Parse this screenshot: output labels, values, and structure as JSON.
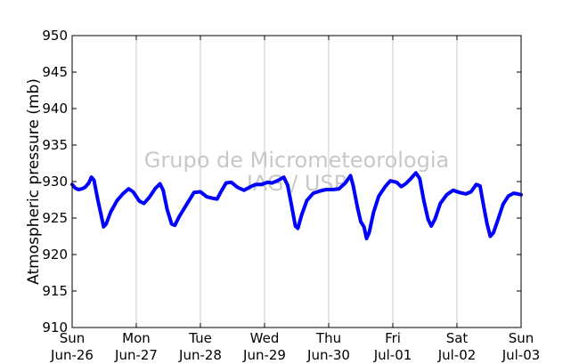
{
  "chart_data": {
    "type": "line",
    "ylabel": "Atmospheric pressure (mb)",
    "ylim": [
      910,
      950
    ],
    "xlim": [
      0,
      7
    ],
    "yticks": [
      910,
      915,
      920,
      925,
      930,
      935,
      940,
      945,
      950
    ],
    "xticks": [
      {
        "day": "Sun",
        "date": "Jun-26"
      },
      {
        "day": "Mon",
        "date": "Jun-27"
      },
      {
        "day": "Tue",
        "date": "Jun-28"
      },
      {
        "day": "Wed",
        "date": "Jun-29"
      },
      {
        "day": "Thu",
        "date": "Jun-30"
      },
      {
        "day": "Fri",
        "date": "Jul-01"
      },
      {
        "day": "Sat",
        "date": "Jul-02"
      },
      {
        "day": "Sun",
        "date": "Jul-03"
      }
    ],
    "x_unit": "days since Jun-26 00:00",
    "grid": "vertical",
    "series_color": "#0000ff",
    "watermark": [
      "Grupo de Micrometeorologia",
      "IAG / USP"
    ],
    "points": [
      [
        0.0,
        929.6
      ],
      [
        0.05,
        929.1
      ],
      [
        0.1,
        928.9
      ],
      [
        0.15,
        929.0
      ],
      [
        0.2,
        929.2
      ],
      [
        0.26,
        929.8
      ],
      [
        0.3,
        930.6
      ],
      [
        0.34,
        930.2
      ],
      [
        0.4,
        927.5
      ],
      [
        0.45,
        925.5
      ],
      [
        0.49,
        923.8
      ],
      [
        0.53,
        924.2
      ],
      [
        0.6,
        925.8
      ],
      [
        0.7,
        927.4
      ],
      [
        0.8,
        928.4
      ],
      [
        0.88,
        929.0
      ],
      [
        0.95,
        928.6
      ],
      [
        1.05,
        927.3
      ],
      [
        1.12,
        927.0
      ],
      [
        1.2,
        927.8
      ],
      [
        1.3,
        929.1
      ],
      [
        1.37,
        929.7
      ],
      [
        1.42,
        928.8
      ],
      [
        1.48,
        926.2
      ],
      [
        1.55,
        924.2
      ],
      [
        1.6,
        924.0
      ],
      [
        1.67,
        925.2
      ],
      [
        1.78,
        926.8
      ],
      [
        1.9,
        928.5
      ],
      [
        2.0,
        928.6
      ],
      [
        2.1,
        927.9
      ],
      [
        2.2,
        927.7
      ],
      [
        2.26,
        927.6
      ],
      [
        2.32,
        928.6
      ],
      [
        2.4,
        929.8
      ],
      [
        2.48,
        929.9
      ],
      [
        2.58,
        929.2
      ],
      [
        2.68,
        928.8
      ],
      [
        2.76,
        929.2
      ],
      [
        2.86,
        929.6
      ],
      [
        2.95,
        929.6
      ],
      [
        3.05,
        929.9
      ],
      [
        3.12,
        929.8
      ],
      [
        3.22,
        930.2
      ],
      [
        3.3,
        930.6
      ],
      [
        3.36,
        929.5
      ],
      [
        3.42,
        926.8
      ],
      [
        3.48,
        923.9
      ],
      [
        3.52,
        923.6
      ],
      [
        3.58,
        925.5
      ],
      [
        3.66,
        927.4
      ],
      [
        3.76,
        928.4
      ],
      [
        3.86,
        928.7
      ],
      [
        3.96,
        928.9
      ],
      [
        4.06,
        928.9
      ],
      [
        4.16,
        929.0
      ],
      [
        4.26,
        929.8
      ],
      [
        4.34,
        930.8
      ],
      [
        4.38,
        929.5
      ],
      [
        4.45,
        926.4
      ],
      [
        4.5,
        924.5
      ],
      [
        4.55,
        923.8
      ],
      [
        4.59,
        922.2
      ],
      [
        4.63,
        923.0
      ],
      [
        4.7,
        925.8
      ],
      [
        4.78,
        928.0
      ],
      [
        4.88,
        929.3
      ],
      [
        4.96,
        930.1
      ],
      [
        5.06,
        929.9
      ],
      [
        5.13,
        929.3
      ],
      [
        5.2,
        929.7
      ],
      [
        5.28,
        930.4
      ],
      [
        5.36,
        931.2
      ],
      [
        5.42,
        930.4
      ],
      [
        5.48,
        927.5
      ],
      [
        5.55,
        924.8
      ],
      [
        5.6,
        923.9
      ],
      [
        5.66,
        924.9
      ],
      [
        5.74,
        927.0
      ],
      [
        5.84,
        928.2
      ],
      [
        5.94,
        928.8
      ],
      [
        6.04,
        928.5
      ],
      [
        6.14,
        928.3
      ],
      [
        6.22,
        928.6
      ],
      [
        6.3,
        929.6
      ],
      [
        6.36,
        929.4
      ],
      [
        6.42,
        926.5
      ],
      [
        6.47,
        924.2
      ],
      [
        6.52,
        922.5
      ],
      [
        6.57,
        923.0
      ],
      [
        6.64,
        924.8
      ],
      [
        6.72,
        926.9
      ],
      [
        6.8,
        928.0
      ],
      [
        6.88,
        928.4
      ],
      [
        6.95,
        928.3
      ],
      [
        7.0,
        928.2
      ]
    ]
  }
}
